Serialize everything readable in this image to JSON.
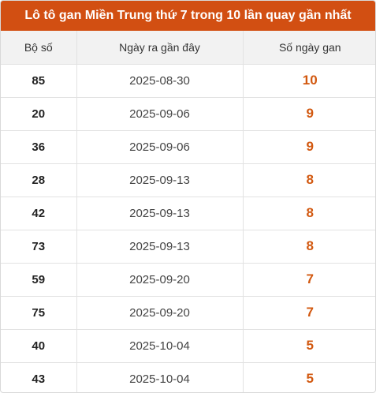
{
  "title": "Lô tô gan Miền Trung thứ 7 trong 10 lần quay gần nhất",
  "headers": [
    "Bộ số",
    "Ngày ra gần đây",
    "Số ngày gan"
  ],
  "rows": [
    {
      "number": "85",
      "date": "2025-08-30",
      "days": "10"
    },
    {
      "number": "20",
      "date": "2025-09-06",
      "days": "9"
    },
    {
      "number": "36",
      "date": "2025-09-06",
      "days": "9"
    },
    {
      "number": "28",
      "date": "2025-09-13",
      "days": "8"
    },
    {
      "number": "42",
      "date": "2025-09-13",
      "days": "8"
    },
    {
      "number": "73",
      "date": "2025-09-13",
      "days": "8"
    },
    {
      "number": "59",
      "date": "2025-09-20",
      "days": "7"
    },
    {
      "number": "75",
      "date": "2025-09-20",
      "days": "7"
    },
    {
      "number": "40",
      "date": "2025-10-04",
      "days": "5"
    },
    {
      "number": "43",
      "date": "2025-10-04",
      "days": "5"
    }
  ],
  "colors": {
    "header_bg": "#d24f12",
    "accent": "#d2580f"
  }
}
